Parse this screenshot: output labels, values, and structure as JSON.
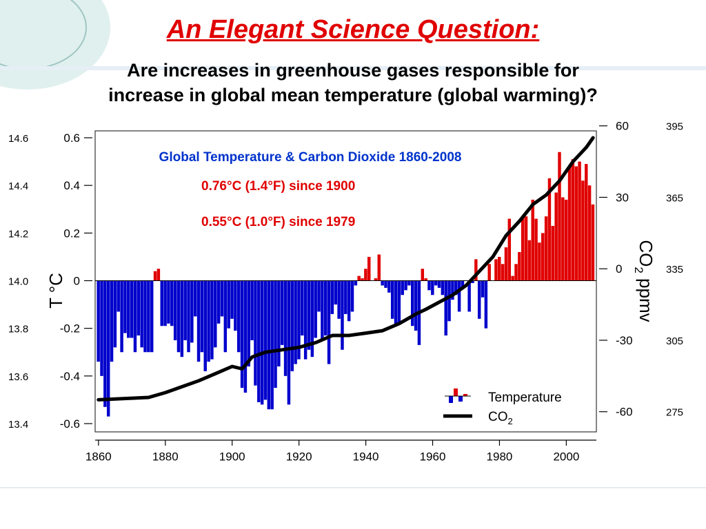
{
  "slide": {
    "title": "An Elegant Science Question:",
    "subtitle_line1": "Are increases in greenhouse gases responsible for",
    "subtitle_line2": "increase in global mean temperature (global warming)?"
  },
  "chart_data": {
    "type": "bar",
    "title": "Global Temperature & Carbon Dioxide 1860-2008",
    "annotations": [
      "0.76°C (1.4°F) since 1900",
      "0.55°C (1.0°F) since 1979"
    ],
    "ylabel_left": "T °C",
    "ylabel_right_main": "CO",
    "ylabel_right_sub": "2",
    "ylabel_right_unit": " ppmv",
    "xlim": [
      1859,
      2009
    ],
    "ylim": [
      -0.6,
      0.6
    ],
    "x_ticks": [
      1860,
      1880,
      1900,
      1920,
      1940,
      1960,
      1980,
      2000
    ],
    "y_ticks": [
      "0.6",
      "0.4",
      "0.2",
      "0",
      "-0.2",
      "-0.4",
      "-0.6"
    ],
    "y_tick_values": [
      0.6,
      0.4,
      0.2,
      0,
      -0.2,
      -0.4,
      -0.6
    ],
    "right_ticks": [
      "60",
      "30",
      "0",
      "-30",
      "-60"
    ],
    "right_tick_values": [
      60,
      30,
      0,
      -30,
      -60
    ],
    "right_ylim": [
      -65,
      55
    ],
    "outer_left_labels": [
      "14.6",
      "14.4",
      "14.2",
      "14.0",
      "13.8",
      "13.6",
      "13.4"
    ],
    "outer_left_values": [
      0.6,
      0.4,
      0.2,
      0,
      -0.2,
      -0.4,
      -0.6
    ],
    "outer_right_labels": [
      "395",
      "365",
      "335",
      "305",
      "275"
    ],
    "outer_right_values": [
      60,
      30,
      0,
      -30,
      -60
    ],
    "legend": [
      "Temperature",
      "CO",
      "2"
    ],
    "colors": {
      "positive": "#e00000",
      "negative": "#0000cc",
      "co2": "#000000",
      "title": "#0033cc",
      "annotation": "#e00000"
    },
    "temperature_series": {
      "name": "Temperature",
      "x": [
        1860,
        1861,
        1862,
        1863,
        1864,
        1865,
        1866,
        1867,
        1868,
        1869,
        1870,
        1871,
        1872,
        1873,
        1874,
        1875,
        1876,
        1877,
        1878,
        1879,
        1880,
        1881,
        1882,
        1883,
        1884,
        1885,
        1886,
        1887,
        1888,
        1889,
        1890,
        1891,
        1892,
        1893,
        1894,
        1895,
        1896,
        1897,
        1898,
        1899,
        1900,
        1901,
        1902,
        1903,
        1904,
        1905,
        1906,
        1907,
        1908,
        1909,
        1910,
        1911,
        1912,
        1913,
        1914,
        1915,
        1916,
        1917,
        1918,
        1919,
        1920,
        1921,
        1922,
        1923,
        1924,
        1925,
        1926,
        1927,
        1928,
        1929,
        1930,
        1931,
        1932,
        1933,
        1934,
        1935,
        1936,
        1937,
        1938,
        1939,
        1940,
        1941,
        1942,
        1943,
        1944,
        1945,
        1946,
        1947,
        1948,
        1949,
        1950,
        1951,
        1952,
        1953,
        1954,
        1955,
        1956,
        1957,
        1958,
        1959,
        1960,
        1961,
        1962,
        1963,
        1964,
        1965,
        1966,
        1967,
        1968,
        1969,
        1970,
        1971,
        1972,
        1973,
        1974,
        1975,
        1976,
        1977,
        1978,
        1979,
        1980,
        1981,
        1982,
        1983,
        1984,
        1985,
        1986,
        1987,
        1988,
        1989,
        1990,
        1991,
        1992,
        1993,
        1994,
        1995,
        1996,
        1997,
        1998,
        1999,
        2000,
        2001,
        2002,
        2003,
        2004,
        2005,
        2006,
        2007,
        2008
      ],
      "values": [
        -0.34,
        -0.4,
        -0.53,
        -0.57,
        -0.34,
        -0.28,
        -0.13,
        -0.3,
        -0.22,
        -0.24,
        -0.24,
        -0.3,
        -0.23,
        -0.28,
        -0.3,
        -0.3,
        -0.3,
        0.04,
        0.05,
        -0.19,
        -0.19,
        -0.18,
        -0.19,
        -0.25,
        -0.3,
        -0.32,
        -0.25,
        -0.3,
        -0.26,
        -0.15,
        -0.34,
        -0.3,
        -0.38,
        -0.34,
        -0.33,
        -0.28,
        -0.18,
        -0.15,
        -0.3,
        -0.2,
        -0.16,
        -0.21,
        -0.3,
        -0.45,
        -0.47,
        -0.36,
        -0.25,
        -0.44,
        -0.51,
        -0.52,
        -0.5,
        -0.54,
        -0.54,
        -0.45,
        -0.36,
        -0.27,
        -0.4,
        -0.52,
        -0.38,
        -0.35,
        -0.33,
        -0.23,
        -0.33,
        -0.29,
        -0.32,
        -0.24,
        -0.13,
        -0.25,
        -0.23,
        -0.35,
        -0.14,
        -0.1,
        -0.16,
        -0.29,
        -0.14,
        -0.17,
        -0.13,
        -0.02,
        0.02,
        0.01,
        0.05,
        0.1,
        0.0,
        0.01,
        0.11,
        -0.02,
        -0.03,
        -0.05,
        -0.16,
        -0.19,
        -0.18,
        -0.06,
        -0.04,
        -0.02,
        -0.19,
        -0.21,
        -0.27,
        0.05,
        0.01,
        -0.04,
        -0.06,
        -0.02,
        -0.03,
        -0.06,
        -0.23,
        -0.17,
        -0.08,
        -0.06,
        -0.13,
        -0.03,
        0.0,
        -0.13,
        -0.01,
        0.09,
        -0.16,
        -0.07,
        -0.2,
        0.07,
        0.0,
        0.09,
        0.1,
        0.07,
        0.14,
        0.26,
        0.02,
        0.07,
        0.12,
        0.27,
        0.27,
        0.17,
        0.34,
        0.26,
        0.16,
        0.2,
        0.27,
        0.43,
        0.23,
        0.37,
        0.54,
        0.35,
        0.34,
        0.48,
        0.51,
        0.48,
        0.5,
        0.42,
        0.49,
        0.4,
        0.32
      ]
    },
    "co2_series": {
      "name": "CO",
      "x": [
        1860,
        1875,
        1880,
        1890,
        1895,
        1900,
        1903,
        1906,
        1910,
        1915,
        1920,
        1925,
        1930,
        1935,
        1940,
        1945,
        1950,
        1955,
        1958,
        1962,
        1966,
        1970,
        1974,
        1978,
        1982,
        1986,
        1990,
        1994,
        1998,
        2002,
        2006,
        2008
      ],
      "values": [
        -55,
        -54,
        -52,
        -47,
        -44,
        -41,
        -42,
        -37,
        -35,
        -34,
        -33,
        -31,
        -28,
        -28,
        -27,
        -26,
        -23,
        -19,
        -17,
        -14,
        -11,
        -7,
        -1,
        5,
        14,
        20,
        27,
        31,
        37,
        45,
        51,
        55
      ]
    }
  }
}
